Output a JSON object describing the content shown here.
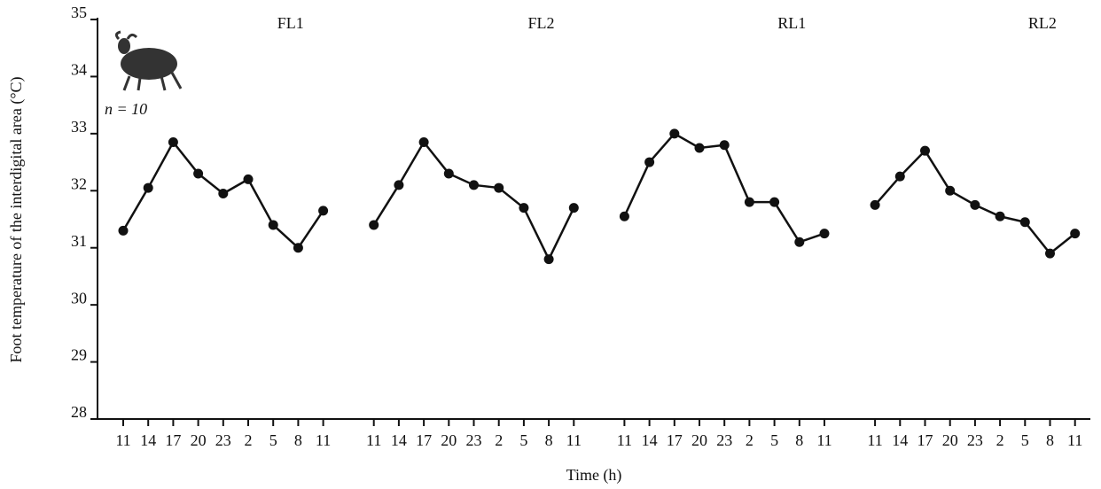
{
  "chart_data": {
    "type": "line",
    "ylabel": "Foot temperature of the interdigital area (°C)",
    "xlabel": "Time (h)",
    "annotation": "n = 10",
    "categories": [
      "11",
      "14",
      "17",
      "20",
      "23",
      "2",
      "5",
      "8",
      "11"
    ],
    "series": [
      {
        "name": "FL1",
        "color": "#111111",
        "values": [
          31.3,
          32.05,
          32.85,
          32.3,
          31.95,
          32.2,
          31.4,
          31.0,
          31.65
        ]
      },
      {
        "name": "FL2",
        "color": "#111111",
        "values": [
          31.4,
          32.1,
          32.85,
          32.3,
          32.1,
          32.05,
          31.7,
          30.8,
          31.7
        ]
      },
      {
        "name": "RL1",
        "color": "#111111",
        "values": [
          31.55,
          32.5,
          33.0,
          32.75,
          32.8,
          31.8,
          31.8,
          31.1,
          31.25
        ]
      },
      {
        "name": "RL2",
        "color": "#111111",
        "values": [
          31.75,
          32.25,
          32.7,
          32.0,
          31.75,
          31.55,
          31.45,
          30.9,
          31.25
        ]
      }
    ],
    "ylim": [
      28,
      35
    ],
    "yticks": [
      28,
      29,
      30,
      31,
      32,
      33,
      34,
      35
    ],
    "grid": false
  }
}
